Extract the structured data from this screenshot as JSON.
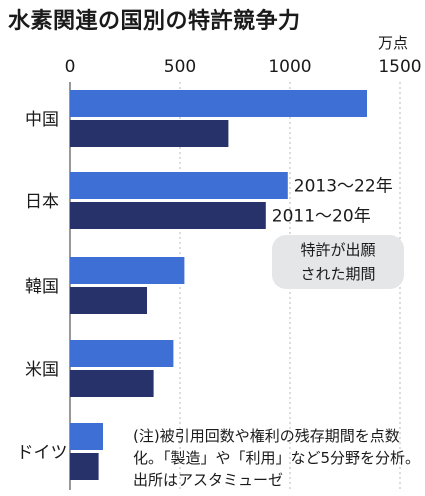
{
  "chart_data": {
    "type": "bar",
    "orientation": "horizontal",
    "title": "水素関連の国別の特許競争力",
    "unit": "万点",
    "categories": [
      "中国",
      "日本",
      "韓国",
      "米国",
      "ドイツ"
    ],
    "series": [
      {
        "name": "2013～22年",
        "color": "#3d6fd4",
        "values": [
          1350,
          990,
          520,
          470,
          150
        ]
      },
      {
        "name": "2011～20年",
        "color": "#27316a",
        "values": [
          720,
          890,
          350,
          380,
          130
        ]
      }
    ],
    "xlim": [
      0,
      1500
    ],
    "xticks": [
      "0",
      "500",
      "1000",
      "1500"
    ],
    "grid": true,
    "callout": [
      "特許が出願",
      "された期間"
    ],
    "note": "(注)被引用回数や権利の残存期間を点数化。「製造」や「利用」など5分野を分析。出所はアスタミューゼ"
  }
}
